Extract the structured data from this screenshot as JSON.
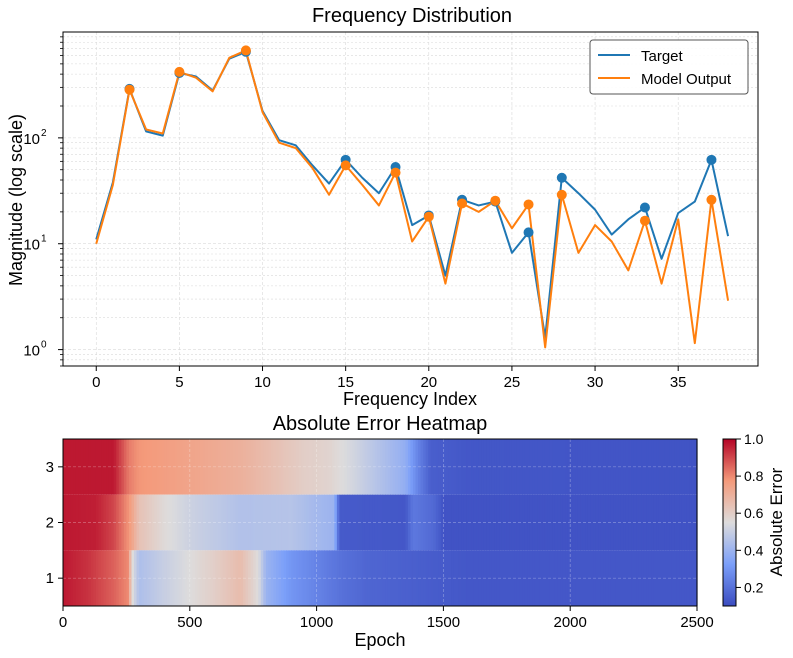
{
  "chart_data": [
    {
      "type": "line",
      "title": "Frequency Distribution",
      "xlabel": "Frequency Index",
      "ylabel": "Magnitude (log scale)",
      "yscale": "log",
      "xlim": [
        -2,
        39.8
      ],
      "ylim": [
        0.7,
        1000
      ],
      "xticks": [
        0,
        5,
        10,
        15,
        20,
        25,
        30,
        35
      ],
      "yticks": [
        {
          "value": 1,
          "base": "10",
          "exp": "0"
        },
        {
          "value": 10,
          "base": "10",
          "exp": "1"
        },
        {
          "value": 100,
          "base": "10",
          "exp": "2"
        }
      ],
      "grid": true,
      "legend_position": "top-right",
      "series": [
        {
          "name": "Target",
          "color": "#1f77b4",
          "values": [
            11,
            38,
            290,
            115,
            105,
            410,
            380,
            280,
            560,
            650,
            180,
            95,
            85,
            55,
            37,
            62,
            42,
            30,
            53,
            15,
            18.5,
            5,
            26,
            23,
            25,
            8.2,
            12.8,
            1.3,
            42,
            30,
            21,
            12.2,
            17,
            22,
            7.2,
            19.5,
            25,
            62,
            11.8
          ],
          "markers": [
            2,
            5,
            9,
            15,
            18,
            20,
            22,
            24,
            26,
            28,
            33,
            37
          ]
        },
        {
          "name": "Model Output",
          "color": "#ff7f0e",
          "values": [
            10,
            36,
            285,
            120,
            110,
            420,
            370,
            275,
            570,
            670,
            175,
            90,
            80,
            52,
            29,
            55,
            36,
            23,
            47,
            10.5,
            18,
            4.2,
            24,
            20,
            25.5,
            14,
            23.5,
            1.05,
            29,
            8.2,
            15,
            10.5,
            5.6,
            16.5,
            4.2,
            17,
            1.15,
            26,
            2.9
          ],
          "markers": [
            2,
            5,
            9,
            15,
            18,
            20,
            22,
            24,
            26,
            28,
            33,
            37
          ]
        }
      ]
    },
    {
      "type": "heatmap",
      "title": "Absolute Error Heatmap",
      "xlabel": "Epoch",
      "xlim": [
        0,
        2500
      ],
      "xticks": [
        0,
        500,
        1000,
        1500,
        2000,
        2500
      ],
      "ylim": [
        0.5,
        3.5
      ],
      "yticks": [
        1,
        2,
        3
      ],
      "colorbar": {
        "label": "Absolute Error",
        "range": [
          0.1,
          1.0
        ],
        "ticks": [
          "0.2",
          "0.4",
          "0.6",
          "0.8",
          "1.0"
        ],
        "colormap": "coolwarm"
      },
      "rows": [
        {
          "y": 3,
          "profile": [
            [
              0,
              0.97
            ],
            [
              200,
              0.97
            ],
            [
              260,
              0.82
            ],
            [
              300,
              0.78
            ],
            [
              500,
              0.74
            ],
            [
              700,
              0.7
            ],
            [
              850,
              0.64
            ],
            [
              950,
              0.6
            ],
            [
              1050,
              0.58
            ],
            [
              1150,
              0.52
            ],
            [
              1250,
              0.45
            ],
            [
              1350,
              0.38
            ],
            [
              1400,
              0.25
            ],
            [
              1450,
              0.15
            ],
            [
              1600,
              0.13
            ],
            [
              2500,
              0.12
            ]
          ]
        },
        {
          "y": 2,
          "profile": [
            [
              0,
              0.97
            ],
            [
              130,
              0.96
            ],
            [
              200,
              0.9
            ],
            [
              260,
              0.78
            ],
            [
              300,
              0.64
            ],
            [
              400,
              0.56
            ],
            [
              500,
              0.51
            ],
            [
              700,
              0.45
            ],
            [
              900,
              0.46
            ],
            [
              1000,
              0.42
            ],
            [
              1070,
              0.4
            ],
            [
              1090,
              0.14
            ],
            [
              1350,
              0.13
            ],
            [
              1380,
              0.22
            ],
            [
              1460,
              0.18
            ],
            [
              1500,
              0.12
            ],
            [
              2500,
              0.12
            ]
          ]
        },
        {
          "y": 1,
          "profile": [
            [
              0,
              0.97
            ],
            [
              100,
              0.93
            ],
            [
              200,
              0.86
            ],
            [
              255,
              0.8
            ],
            [
              275,
              0.55
            ],
            [
              300,
              0.44
            ],
            [
              400,
              0.5
            ],
            [
              500,
              0.55
            ],
            [
              600,
              0.6
            ],
            [
              700,
              0.66
            ],
            [
              770,
              0.55
            ],
            [
              800,
              0.4
            ],
            [
              900,
              0.3
            ],
            [
              1000,
              0.25
            ],
            [
              1100,
              0.2
            ],
            [
              1200,
              0.17
            ],
            [
              1400,
              0.15
            ],
            [
              1600,
              0.13
            ],
            [
              2500,
              0.13
            ]
          ]
        }
      ]
    }
  ]
}
